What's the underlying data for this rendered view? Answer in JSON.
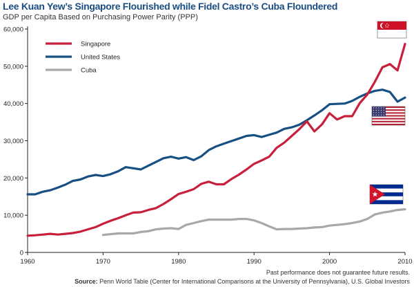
{
  "title": "Lee Kuan Yew’s Singapore Flourished while Fidel Castro’s Cuba Floundered",
  "subtitle": "GDP per Capita Based on Purchasing Power Parity (PPP)",
  "note": "Past performance does not guarantee future results.",
  "source_label": "Source:",
  "source_text": "Penn World Table (Center for International Comparisons at the University of Pennsylvania), U.S. Global Investors",
  "colors": {
    "singapore": "#c8203c",
    "united_states": "#184f82",
    "cuba": "#a8a8a8"
  },
  "icons": [
    "singapore-flag-icon",
    "united-states-flag-icon",
    "cuba-flag-icon"
  ],
  "chart_data": {
    "type": "line",
    "title": "Lee Kuan Yew’s Singapore Flourished while Fidel Castro’s Cuba Floundered",
    "subtitle": "GDP per Capita Based on Purchasing Power Parity (PPP)",
    "xlim": [
      1960,
      2010
    ],
    "ylim": [
      0,
      60000
    ],
    "x_ticks": [
      1960,
      1970,
      1980,
      1990,
      2000,
      2010
    ],
    "y_ticks": [
      0,
      10000,
      20000,
      30000,
      40000,
      50000,
      60000
    ],
    "y_tick_labels": [
      "0",
      "10,000",
      "20,000",
      "30,000",
      "40,000",
      "50,000",
      "60,000"
    ],
    "x_tick_labels": [
      "1960",
      "1970",
      "1980",
      "1990",
      "2000",
      "2010"
    ],
    "grid": false,
    "legend_position": "top-left",
    "series": [
      {
        "name": "Singapore",
        "x": [
          1960,
          1961,
          1962,
          1963,
          1964,
          1965,
          1966,
          1967,
          1968,
          1969,
          1970,
          1971,
          1972,
          1973,
          1974,
          1975,
          1976,
          1977,
          1978,
          1979,
          1980,
          1981,
          1982,
          1983,
          1984,
          1985,
          1986,
          1987,
          1988,
          1989,
          1990,
          1991,
          1992,
          1993,
          1994,
          1995,
          1996,
          1997,
          1998,
          1999,
          2000,
          2001,
          2002,
          2003,
          2004,
          2005,
          2006,
          2007,
          2008,
          2009,
          2010
        ],
        "values": [
          4500,
          4600,
          4800,
          5000,
          4800,
          5000,
          5200,
          5600,
          6200,
          6800,
          7700,
          8500,
          9200,
          10000,
          10700,
          10800,
          11400,
          11900,
          13000,
          14300,
          15700,
          16300,
          17000,
          18400,
          19000,
          18300,
          18300,
          19700,
          20900,
          22300,
          23800,
          24700,
          25700,
          28100,
          29500,
          31300,
          33100,
          35200,
          32500,
          34400,
          37400,
          35700,
          36600,
          36600,
          40100,
          42400,
          45800,
          49700,
          50600,
          48900,
          56000
        ]
      },
      {
        "name": "United States",
        "x": [
          1960,
          1961,
          1962,
          1963,
          1964,
          1965,
          1966,
          1967,
          1968,
          1969,
          1970,
          1971,
          1972,
          1973,
          1974,
          1975,
          1976,
          1977,
          1978,
          1979,
          1980,
          1981,
          1982,
          1983,
          1984,
          1985,
          1986,
          1987,
          1988,
          1989,
          1990,
          1991,
          1992,
          1993,
          1994,
          1995,
          1996,
          1997,
          1998,
          1999,
          2000,
          2001,
          2002,
          2003,
          2004,
          2005,
          2006,
          2007,
          2008,
          2009,
          2010
        ],
        "values": [
          15600,
          15600,
          16300,
          16700,
          17400,
          18200,
          19200,
          19600,
          20400,
          20800,
          20500,
          21000,
          21800,
          22900,
          22600,
          22300,
          23300,
          24300,
          25300,
          25700,
          25200,
          25600,
          24800,
          25800,
          27500,
          28500,
          29200,
          29900,
          30600,
          31300,
          31500,
          31000,
          31600,
          32200,
          33200,
          33600,
          34300,
          35500,
          36800,
          38200,
          39800,
          39900,
          40000,
          40700,
          41800,
          42700,
          43400,
          43700,
          43100,
          40500,
          41600
        ]
      },
      {
        "name": "Cuba",
        "x": [
          1970,
          1971,
          1972,
          1973,
          1974,
          1975,
          1976,
          1977,
          1978,
          1979,
          1980,
          1981,
          1982,
          1983,
          1984,
          1985,
          1986,
          1987,
          1988,
          1989,
          1990,
          1991,
          1992,
          1993,
          1994,
          1995,
          1996,
          1997,
          1998,
          1999,
          2000,
          2001,
          2002,
          2003,
          2004,
          2005,
          2006,
          2007,
          2008,
          2009,
          2010
        ],
        "values": [
          4700,
          4900,
          5100,
          5100,
          5100,
          5500,
          5700,
          6200,
          6400,
          6500,
          6300,
          7400,
          7900,
          8400,
          8800,
          8800,
          8800,
          8800,
          9000,
          9000,
          8600,
          7900,
          7000,
          6200,
          6300,
          6300,
          6400,
          6500,
          6700,
          6800,
          7200,
          7400,
          7600,
          7900,
          8300,
          9000,
          10200,
          10700,
          11000,
          11400,
          11600
        ]
      }
    ]
  }
}
